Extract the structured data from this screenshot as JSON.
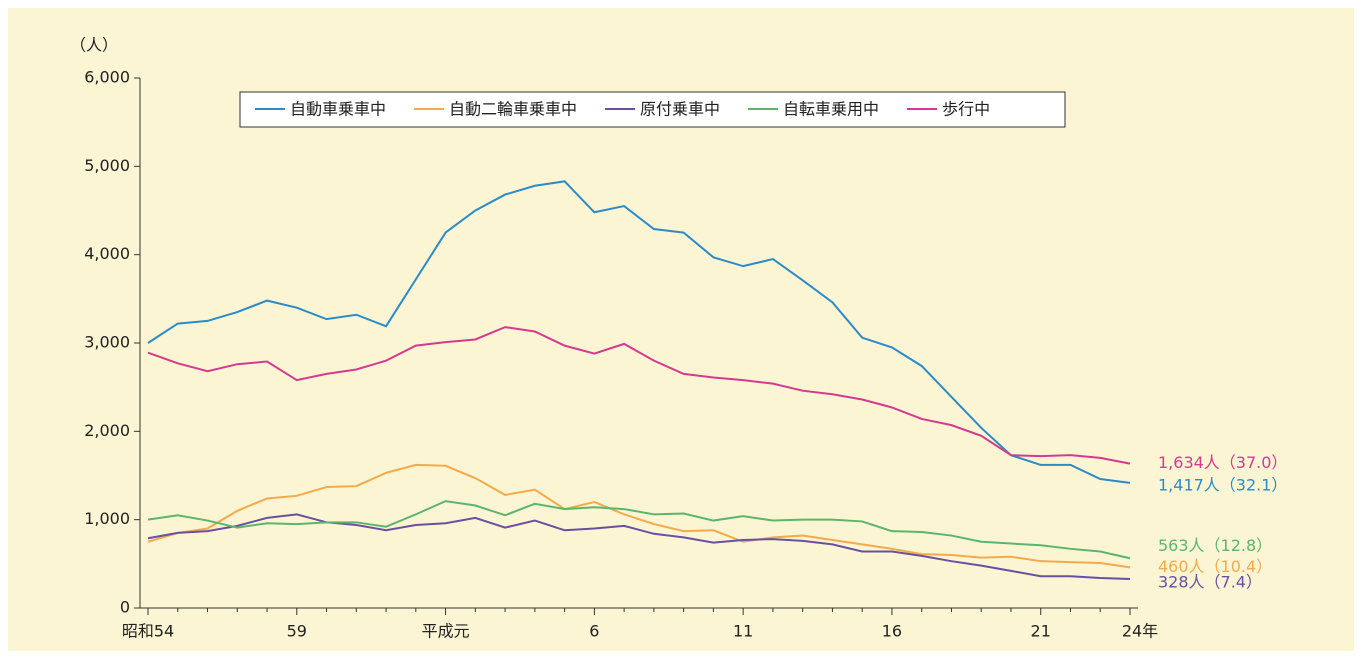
{
  "chart_data": {
    "type": "line",
    "y_label": "（人）",
    "categories": [
      "昭和54",
      null,
      null,
      null,
      null,
      "59",
      null,
      null,
      null,
      null,
      "平成元",
      null,
      null,
      null,
      null,
      "6",
      null,
      null,
      null,
      null,
      "11",
      null,
      null,
      null,
      null,
      "16",
      null,
      null,
      null,
      null,
      "21",
      null,
      null,
      "24年"
    ],
    "ylim": [
      0,
      6000
    ],
    "yticks": [
      0,
      {
        "value": 1000,
        "label": "1,000"
      },
      {
        "value": 2000,
        "label": "2,000"
      },
      {
        "value": 3000,
        "label": "3,000"
      },
      {
        "value": 4000,
        "label": "4,000"
      },
      {
        "value": 5000,
        "label": "5,000"
      },
      {
        "value": 6000,
        "label": "6,000"
      }
    ],
    "legend": "top",
    "series": [
      {
        "name": "自動車乗車中",
        "color": "#2a8bc9",
        "end_label": "1,417人（32.1）",
        "values": [
          3000,
          3220,
          3250,
          3350,
          3480,
          3400,
          3270,
          3320,
          3190,
          3720,
          4250,
          4500,
          4680,
          4780,
          4830,
          4480,
          4550,
          4290,
          4250,
          3970,
          3870,
          3950,
          3710,
          3460,
          3060,
          2950,
          2740,
          2390,
          2040,
          1730,
          1620,
          1620,
          1460,
          1417
        ]
      },
      {
        "name": "自動二輪車乗車中",
        "color": "#f5a94a",
        "end_label": "460人（10.4）",
        "values": [
          750,
          850,
          900,
          1100,
          1240,
          1270,
          1370,
          1380,
          1530,
          1620,
          1610,
          1470,
          1280,
          1340,
          1120,
          1200,
          1060,
          950,
          870,
          880,
          750,
          800,
          820,
          770,
          720,
          670,
          610,
          600,
          570,
          580,
          530,
          520,
          510,
          460
        ]
      },
      {
        "name": "原付乗車中",
        "color": "#6b4fa0",
        "end_label": "328人（7.4）",
        "values": [
          790,
          850,
          870,
          930,
          1020,
          1060,
          970,
          940,
          880,
          940,
          960,
          1020,
          910,
          990,
          880,
          900,
          930,
          840,
          800,
          740,
          770,
          780,
          760,
          720,
          640,
          640,
          590,
          530,
          480,
          420,
          360,
          360,
          340,
          328
        ]
      },
      {
        "name": "自転車乗用中",
        "color": "#5bb56b",
        "end_label": "563人（12.8）",
        "values": [
          1000,
          1050,
          990,
          910,
          960,
          950,
          970,
          970,
          920,
          1060,
          1210,
          1160,
          1050,
          1180,
          1120,
          1140,
          1120,
          1060,
          1070,
          990,
          1040,
          990,
          1000,
          1000,
          980,
          870,
          860,
          820,
          750,
          730,
          710,
          670,
          640,
          563
        ]
      },
      {
        "name": "歩行中",
        "color": "#d6398f",
        "end_label": "1,634人（37.0）",
        "values": [
          2890,
          2770,
          2680,
          2760,
          2790,
          2580,
          2650,
          2700,
          2800,
          2970,
          3010,
          3040,
          3180,
          3130,
          2970,
          2880,
          2990,
          2800,
          2650,
          2610,
          2580,
          2540,
          2460,
          2420,
          2360,
          2270,
          2140,
          2070,
          1950,
          1730,
          1720,
          1730,
          1700,
          1634
        ]
      }
    ]
  }
}
